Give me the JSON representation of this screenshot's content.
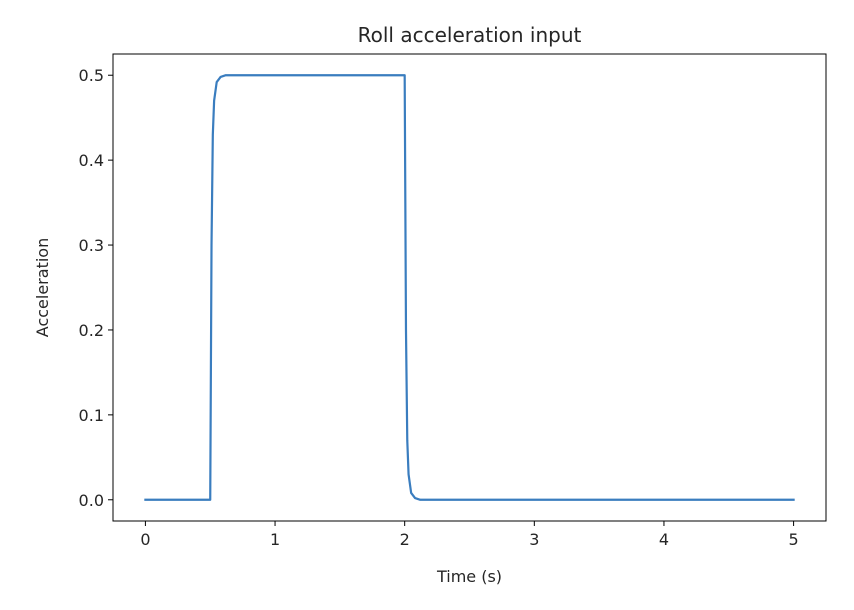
{
  "chart_data": {
    "type": "line",
    "title": "Roll acceleration input",
    "xlabel": "Time (s)",
    "ylabel": "Acceleration",
    "xlim": [
      -0.25,
      5.25
    ],
    "ylim": [
      -0.025,
      0.525
    ],
    "xticks": [
      0,
      1,
      2,
      3,
      4,
      5
    ],
    "xtick_labels": [
      "0",
      "1",
      "2",
      "3",
      "4",
      "5"
    ],
    "yticks": [
      0.0,
      0.1,
      0.2,
      0.3,
      0.4,
      0.5
    ],
    "ytick_labels": [
      "0.0",
      "0.1",
      "0.2",
      "0.3",
      "0.4",
      "0.5"
    ],
    "grid": false,
    "series": [
      {
        "color": "#3a7dbf",
        "x": [
          0.0,
          0.5,
          0.505,
          0.51,
          0.52,
          0.53,
          0.55,
          0.58,
          0.62,
          0.7,
          1.0,
          1.5,
          1.98,
          2.0,
          2.005,
          2.01,
          2.02,
          2.03,
          2.05,
          2.08,
          2.12,
          2.2,
          3.0,
          4.0,
          5.0
        ],
        "y": [
          0.0,
          0.0,
          0.15,
          0.3,
          0.43,
          0.47,
          0.492,
          0.498,
          0.5,
          0.5,
          0.5,
          0.5,
          0.5,
          0.5,
          0.35,
          0.2,
          0.07,
          0.03,
          0.008,
          0.002,
          0.0,
          0.0,
          0.0,
          0.0,
          0.0
        ]
      }
    ]
  }
}
